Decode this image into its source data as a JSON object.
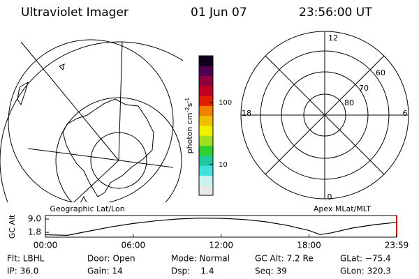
{
  "header": {
    "title": "Ultraviolet Imager",
    "date": "01 Jun 07",
    "time": "23:56:00 UT"
  },
  "left_panel": {
    "label": "Geographic Lat/Lon"
  },
  "right_panel": {
    "label": "Apex MLat/MLT",
    "mlt_labels": [
      "12",
      "18",
      "6",
      "0"
    ],
    "mlat_labels": [
      "60",
      "70",
      "80"
    ]
  },
  "chart_data": [
    {
      "type": "line",
      "ylabel": "GC Alt",
      "x": [
        0,
        1.5,
        3,
        4.5,
        6,
        7.5,
        9,
        10.5,
        12,
        13.5,
        15,
        16.5,
        18,
        18.75,
        19.5,
        21,
        22.5,
        23.983
      ],
      "series": [
        {
          "color": "#000000",
          "values": [
            0.5,
            0.2,
            2.5,
            4.8,
            6.6,
            8.0,
            9.0,
            9.5,
            9.4,
            8.8,
            7.6,
            5.6,
            2.8,
            0.6,
            1.5,
            4.2,
            6.0,
            7.2
          ]
        }
      ],
      "xlim": [
        0,
        23.983
      ],
      "xticks": [
        {
          "value": 0,
          "label": "00:00"
        },
        {
          "value": 6,
          "label": "06:00"
        },
        {
          "value": 12,
          "label": "12:00"
        },
        {
          "value": 18,
          "label": "18:00"
        },
        {
          "value": 23.983,
          "label": "23:59"
        }
      ],
      "ylim": [
        -0.8,
        10.9
      ],
      "yticks": [
        {
          "value": 1.8,
          "label": "1.8"
        },
        {
          "value": 9,
          "label": "9.0"
        }
      ]
    },
    {
      "type": "colorbar",
      "label": [
        "photon cm",
        "-2",
        "s",
        "-1"
      ],
      "log": true,
      "ylim": [
        3.2,
        566
      ],
      "yticks": [
        10,
        100
      ],
      "colors": [
        "#e8e8e8",
        "#c8f0f0",
        "#40e0e0",
        "#20c8a0",
        "#30d030",
        "#a0e020",
        "#f0f000",
        "#f0c000",
        "#f08000",
        "#e02000",
        "#c00020",
        "#900040",
        "#500050",
        "#100020"
      ]
    }
  ],
  "footer": {
    "rows": [
      [
        "Flt: LBHL",
        "Door: Open",
        "Mode: Normal",
        "GC Alt: 7.2 Re",
        "GLat: −75.4"
      ],
      [
        "IP: 36.0",
        "Gain: 14",
        "Dsp:    1.4",
        "Seq: 39",
        "GLon: 320.3"
      ]
    ]
  }
}
